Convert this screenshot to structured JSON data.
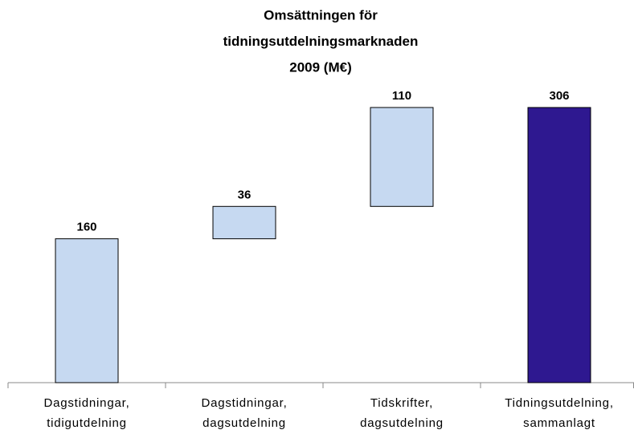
{
  "chart_data": {
    "type": "waterfall",
    "title": [
      "Omsättningen för",
      "tidningsutdelningsmarknaden",
      "2009 (M€)"
    ],
    "categories": [
      [
        "Dagstidningar,",
        "tidigutdelning"
      ],
      [
        "Dagstidningar,",
        "dagsutdelning"
      ],
      [
        "Tidskrifter,",
        "dagsutdelning"
      ],
      [
        "Tidningsutdelning,",
        "sammanlagt"
      ]
    ],
    "values": [
      160,
      36,
      110,
      306
    ],
    "measure": [
      "relative",
      "relative",
      "relative",
      "total"
    ],
    "colors": [
      "#c6d9f1",
      "#c6d9f1",
      "#c6d9f1",
      "#2e1890"
    ]
  }
}
